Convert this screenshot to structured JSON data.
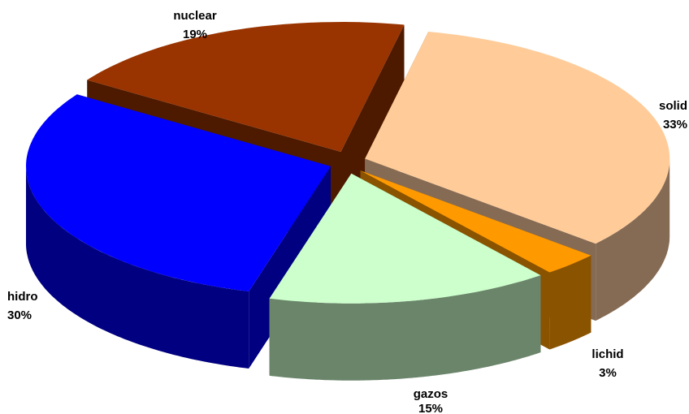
{
  "chart_data": {
    "type": "pie",
    "style": "3d-exploded",
    "slices": [
      {
        "name": "solid",
        "label": "solid",
        "value": 33,
        "percent_label": "33%",
        "color": "#FFCC99",
        "side_color": "#866B54"
      },
      {
        "name": "lichid",
        "label": "lichid",
        "value": 3,
        "percent_label": "3%",
        "color": "#FF9900",
        "side_color": "#8A5300"
      },
      {
        "name": "gazos",
        "label": "gazos",
        "value": 15,
        "percent_label": "15%",
        "color": "#CCFFCC",
        "side_color": "#6B856B"
      },
      {
        "name": "hidro",
        "label": "hidro",
        "value": 30,
        "percent_label": "30%",
        "color": "#0000FF",
        "side_color": "#000080"
      },
      {
        "name": "nuclear",
        "label": "nuclear",
        "value": 19,
        "percent_label": "19%",
        "color": "#993300",
        "side_color": "#4D1A00"
      }
    ]
  }
}
